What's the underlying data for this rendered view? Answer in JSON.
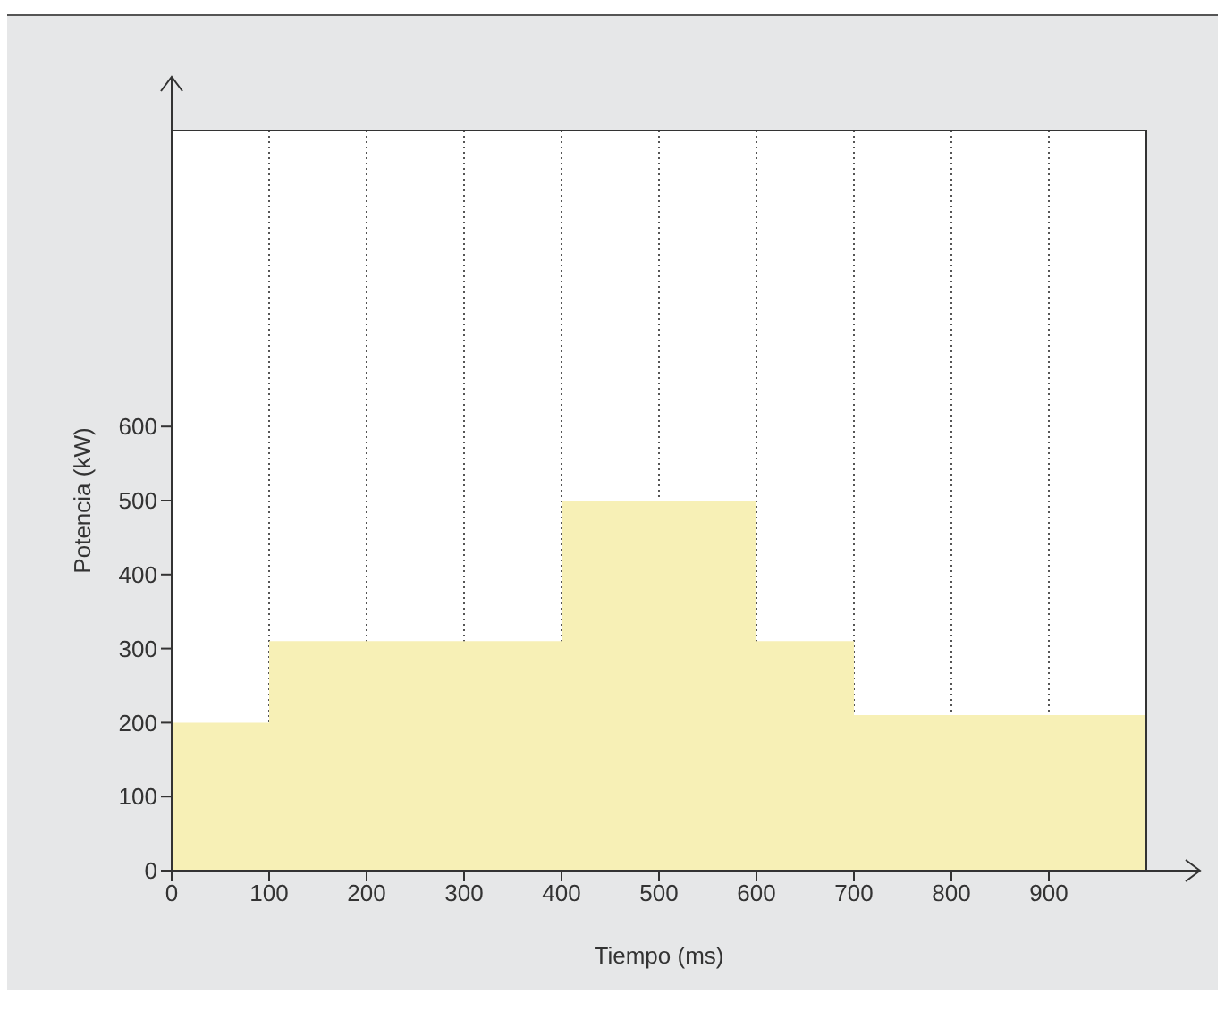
{
  "chart_data": {
    "type": "histogram",
    "xlabel": "Tiempo (ms)",
    "ylabel": "Potencia (kW)",
    "bins": [
      0,
      100,
      400,
      600,
      700,
      1000
    ],
    "values": [
      200,
      310,
      500,
      310,
      210
    ],
    "color": "#f7f0b6",
    "xlim": [
      0,
      1000
    ],
    "xticks": [
      0,
      100,
      200,
      300,
      400,
      500,
      600,
      700,
      800,
      900
    ],
    "ylim": [
      0,
      1000
    ],
    "yticks": [
      0,
      100,
      200,
      300,
      400,
      500,
      600
    ],
    "grid": "x"
  }
}
